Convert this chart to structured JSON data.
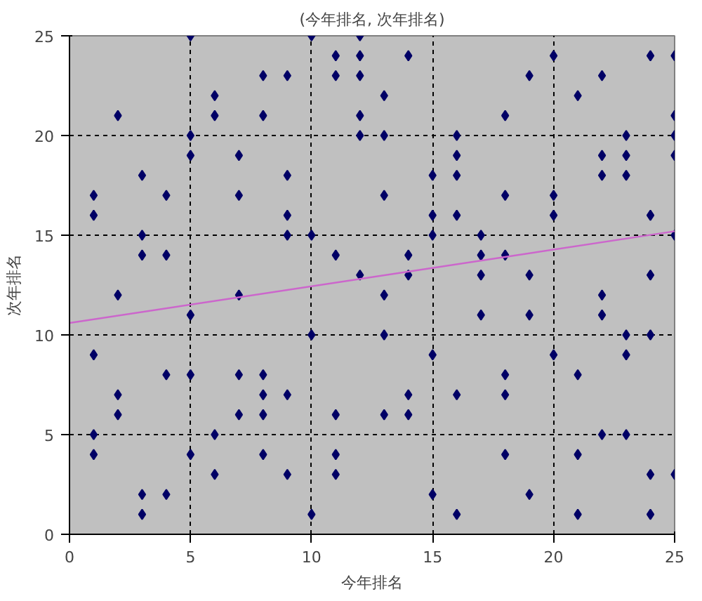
{
  "chart_data": {
    "type": "scatter",
    "title": "(今年排名, 次年排名)",
    "xlabel": "今年排名",
    "ylabel": "次年排名",
    "xlim": [
      0,
      25
    ],
    "ylim": [
      0,
      25
    ],
    "xticks": [
      0,
      5,
      10,
      15,
      20,
      25
    ],
    "yticks": [
      0,
      5,
      10,
      15,
      20,
      25
    ],
    "grid": true,
    "series": [
      {
        "marker": "diamond",
        "color": "#000066",
        "x": [
          1,
          1,
          1,
          1,
          1,
          2,
          2,
          2,
          2,
          3,
          3,
          3,
          3,
          3,
          4,
          4,
          4,
          4,
          5,
          5,
          5,
          5,
          5,
          5,
          6,
          6,
          6,
          6,
          7,
          7,
          7,
          7,
          7,
          8,
          8,
          8,
          8,
          8,
          8,
          9,
          9,
          9,
          9,
          9,
          9,
          10,
          10,
          10,
          10,
          11,
          11,
          11,
          11,
          11,
          11,
          12,
          12,
          12,
          12,
          12,
          12,
          13,
          13,
          13,
          13,
          13,
          13,
          14,
          14,
          14,
          14,
          14,
          15,
          15,
          15,
          15,
          15,
          16,
          16,
          16,
          16,
          16,
          16,
          17,
          17,
          17,
          17,
          18,
          18,
          18,
          18,
          18,
          18,
          19,
          19,
          19,
          19,
          20,
          20,
          20,
          20,
          21,
          21,
          21,
          21,
          22,
          22,
          22,
          22,
          22,
          22,
          23,
          23,
          23,
          23,
          23,
          23,
          24,
          24,
          24,
          24,
          24,
          24,
          25,
          25,
          25,
          25,
          25,
          25
        ],
        "values": [
          17,
          16,
          9,
          5,
          4,
          21,
          12,
          7,
          6,
          18,
          15,
          14,
          2,
          1,
          17,
          14,
          8,
          2,
          25,
          20,
          19,
          11,
          8,
          4,
          22,
          21,
          5,
          3,
          19,
          17,
          12,
          8,
          6,
          23,
          21,
          8,
          7,
          6,
          4,
          23,
          18,
          16,
          15,
          7,
          3,
          25,
          15,
          10,
          1,
          24,
          23,
          14,
          6,
          4,
          3,
          25,
          24,
          23,
          21,
          20,
          13,
          22,
          20,
          17,
          12,
          10,
          6,
          24,
          14,
          13,
          7,
          6,
          18,
          16,
          15,
          9,
          2,
          20,
          19,
          18,
          16,
          7,
          1,
          15,
          14,
          13,
          11,
          21,
          17,
          14,
          8,
          7,
          4,
          23,
          13,
          11,
          2,
          24,
          17,
          16,
          9,
          22,
          8,
          4,
          1,
          23,
          19,
          18,
          12,
          11,
          5,
          20,
          19,
          18,
          10,
          9,
          5,
          24,
          16,
          13,
          10,
          3,
          1,
          24,
          21,
          20,
          19,
          15,
          3
        ]
      },
      {
        "type": "line",
        "color": "#cc66cc",
        "x": [
          0,
          25
        ],
        "values": [
          10.6,
          15.2
        ]
      }
    ]
  }
}
